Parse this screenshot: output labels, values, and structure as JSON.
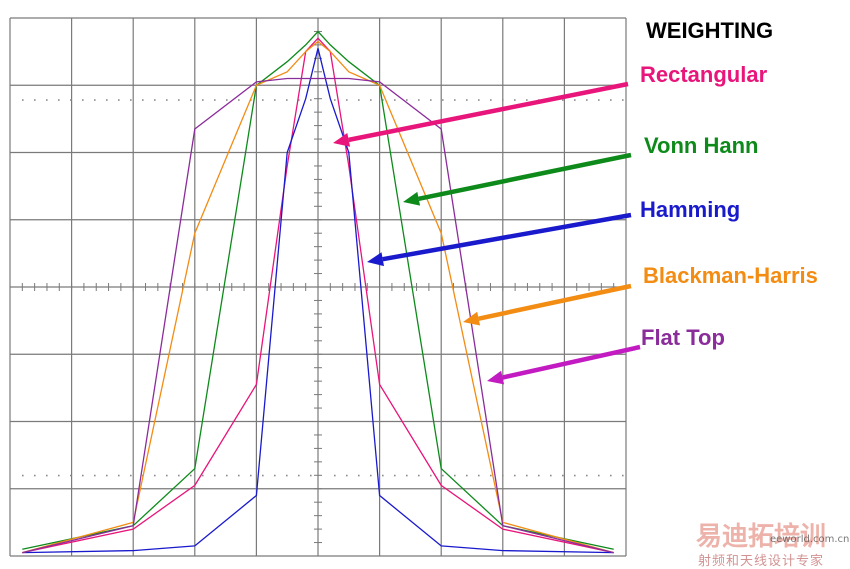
{
  "chart_data": {
    "type": "line",
    "title": "WEIGHTING",
    "x": [
      -4.8,
      -3,
      -2,
      -1,
      -0.5,
      -0.2,
      0,
      0.2,
      0.5,
      1,
      2,
      3,
      4.8
    ],
    "ylim": [
      0,
      8
    ],
    "xlim": [
      -5,
      5
    ],
    "grid": true,
    "series": [
      {
        "name": "Rectangular",
        "color": "#e8157a",
        "values": [
          0.05,
          0.4,
          1.05,
          2.55,
          5.8,
          7.5,
          7.7,
          7.5,
          5.8,
          2.55,
          1.05,
          0.4,
          0.05
        ]
      },
      {
        "name": "Vonn Hann",
        "color": "#0e8a1b",
        "values": [
          0.1,
          0.45,
          1.3,
          7.0,
          7.35,
          7.6,
          7.8,
          7.6,
          7.35,
          7.0,
          1.3,
          0.45,
          0.1
        ]
      },
      {
        "name": "Hamming",
        "color": "#1a1acd",
        "values": [
          0.05,
          0.08,
          0.15,
          0.9,
          6.0,
          6.8,
          7.55,
          6.8,
          6.0,
          0.9,
          0.15,
          0.08,
          0.05
        ]
      },
      {
        "name": "Blackman-Harris",
        "color": "#f28c13",
        "values": [
          0.05,
          0.5,
          4.8,
          7.0,
          7.2,
          7.5,
          7.65,
          7.5,
          7.2,
          7.0,
          4.8,
          0.5,
          0.05
        ]
      },
      {
        "name": "Flat Top",
        "color": "#8b2c9b",
        "values": [
          0.05,
          0.45,
          6.35,
          7.05,
          7.1,
          7.1,
          7.1,
          7.1,
          7.1,
          7.05,
          6.35,
          0.45,
          0.05
        ]
      }
    ],
    "legend_placement": "right",
    "legend_style": "arrows"
  },
  "watermark": {
    "brand_cn": "易迪拓培训",
    "sub_cn": "射频和天线设计专家",
    "site": "eeworld.com.cn"
  }
}
